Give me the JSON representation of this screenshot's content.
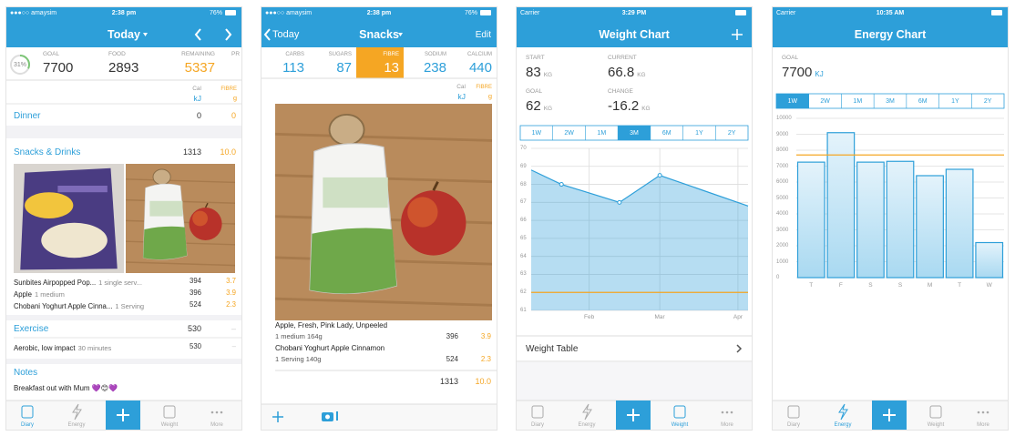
{
  "today": {
    "status": {
      "carrier": "●●●○○ amaysim",
      "time": "2:38 pm",
      "battery": "76%"
    },
    "title": "Today",
    "summary": {
      "ring": "31%",
      "goal_label": "GOAL",
      "goal": "7700",
      "food_label": "FOOD",
      "food": "2893",
      "remaining_label": "REMAINING",
      "remaining": "5337",
      "next_label": "PR"
    },
    "columns": {
      "energy": "Cal",
      "energy_unit": "kJ",
      "fibre": "FIBRE",
      "fibre_unit": "g"
    },
    "dinner": {
      "name": "Dinner",
      "energy": "0",
      "fibre": "0"
    },
    "snacks": {
      "name": "Snacks & Drinks",
      "energy": "1313",
      "fibre": "10.0",
      "items": [
        {
          "name": "Sunbites Airpopped Pop...",
          "detail": "1 single serv...",
          "energy": "394",
          "fibre": "3.7"
        },
        {
          "name": "Apple",
          "detail": "1 medium",
          "energy": "396",
          "fibre": "3.9"
        },
        {
          "name": "Chobani Yoghurt Apple Cinna...",
          "detail": "1 Serving",
          "energy": "524",
          "fibre": "2.3"
        }
      ]
    },
    "exercise": {
      "name": "Exercise",
      "energy": "530",
      "fibre": "–",
      "items": [
        {
          "name": "Aerobic, low impact",
          "detail": "30 minutes",
          "energy": "530",
          "fibre": "–"
        }
      ]
    },
    "notes": {
      "title": "Notes",
      "text": "Breakfast out with Mum 💜😊💜"
    },
    "tabs": [
      "Diary",
      "Energy",
      "Weight",
      "More"
    ]
  },
  "snacks": {
    "status": {
      "carrier": "●●●○○ amaysim",
      "time": "2:38 pm",
      "battery": "76%"
    },
    "back": "Today",
    "title": "Snacks",
    "action": "Edit",
    "nutrients": [
      {
        "label": "CARBS",
        "value": "113"
      },
      {
        "label": "SUGARS",
        "value": "87"
      },
      {
        "label": "FIBRE",
        "value": "13"
      },
      {
        "label": "SODIUM",
        "value": "238"
      },
      {
        "label": "CALCIUM",
        "value": "440"
      }
    ],
    "active_nutrient": 2,
    "columns": {
      "energy": "Cal",
      "energy_unit": "kJ",
      "fibre": "FIBRE",
      "fibre_unit": "g"
    },
    "items": [
      {
        "name": "Apple, Fresh, Pink Lady, Unpeeled",
        "detail": "1 medium 164g",
        "energy": "396",
        "fibre": "3.9"
      },
      {
        "name": "Chobani Yoghurt Apple Cinnamon",
        "detail": "1 Serving 140g",
        "energy": "524",
        "fibre": "2.3"
      }
    ],
    "total": {
      "energy": "1313",
      "fibre": "10.0"
    }
  },
  "weight": {
    "status": {
      "carrier": "Carrier",
      "time": "3:29 PM"
    },
    "title": "Weight Chart",
    "stats": [
      {
        "label": "START",
        "value": "83",
        "unit": "KG"
      },
      {
        "label": "CURRENT",
        "value": "66.8",
        "unit": "KG"
      },
      {
        "label": "GOAL",
        "value": "62",
        "unit": "KG"
      },
      {
        "label": "CHANGE",
        "value": "-16.2",
        "unit": "KG"
      }
    ],
    "ranges": [
      "1W",
      "2W",
      "1M",
      "3M",
      "6M",
      "1Y",
      "2Y"
    ],
    "active_range": 3,
    "chart_data": {
      "type": "area",
      "x": [
        9,
        21,
        44,
        60,
        95
      ],
      "values": [
        68.8,
        68.0,
        67.0,
        68.5,
        66.8
      ],
      "xlim": [
        9,
        95
      ],
      "xticks": [
        {
          "value": 32,
          "label": "Feb"
        },
        {
          "value": 60,
          "label": "Mar"
        },
        {
          "value": 91,
          "label": "Apr"
        }
      ],
      "ylim": [
        61,
        70
      ],
      "yticks": [
        70,
        69,
        68,
        67,
        66,
        65,
        64,
        63,
        62,
        61
      ],
      "goal": 62,
      "color": "#2d9fd9",
      "goal_color": "#f5a623",
      "grid": true
    },
    "table_link": "Weight Table",
    "tabs": [
      "Diary",
      "Energy",
      "Weight",
      "More"
    ]
  },
  "energy": {
    "status": {
      "carrier": "Carrier",
      "time": "10:35 AM"
    },
    "title": "Energy Chart",
    "goal": {
      "label": "GOAL",
      "value": "7700",
      "unit": "KJ"
    },
    "ranges": [
      "1W",
      "2W",
      "1M",
      "3M",
      "6M",
      "1Y",
      "2Y"
    ],
    "active_range": 0,
    "chart_data": {
      "type": "bar",
      "categories": [
        "T",
        "F",
        "S",
        "S",
        "M",
        "T",
        "W"
      ],
      "values": [
        7250,
        9100,
        7250,
        7300,
        6400,
        6800,
        2200
      ],
      "ylim": [
        0,
        10000
      ],
      "yticks": [
        10000,
        9000,
        8000,
        7000,
        6000,
        5000,
        4000,
        3000,
        2000,
        1000,
        0
      ],
      "goal": 7700,
      "color": "#2d9fd9",
      "goal_color": "#f5a623",
      "grid": true
    },
    "tabs": [
      "Diary",
      "Energy",
      "Weight",
      "More"
    ]
  }
}
